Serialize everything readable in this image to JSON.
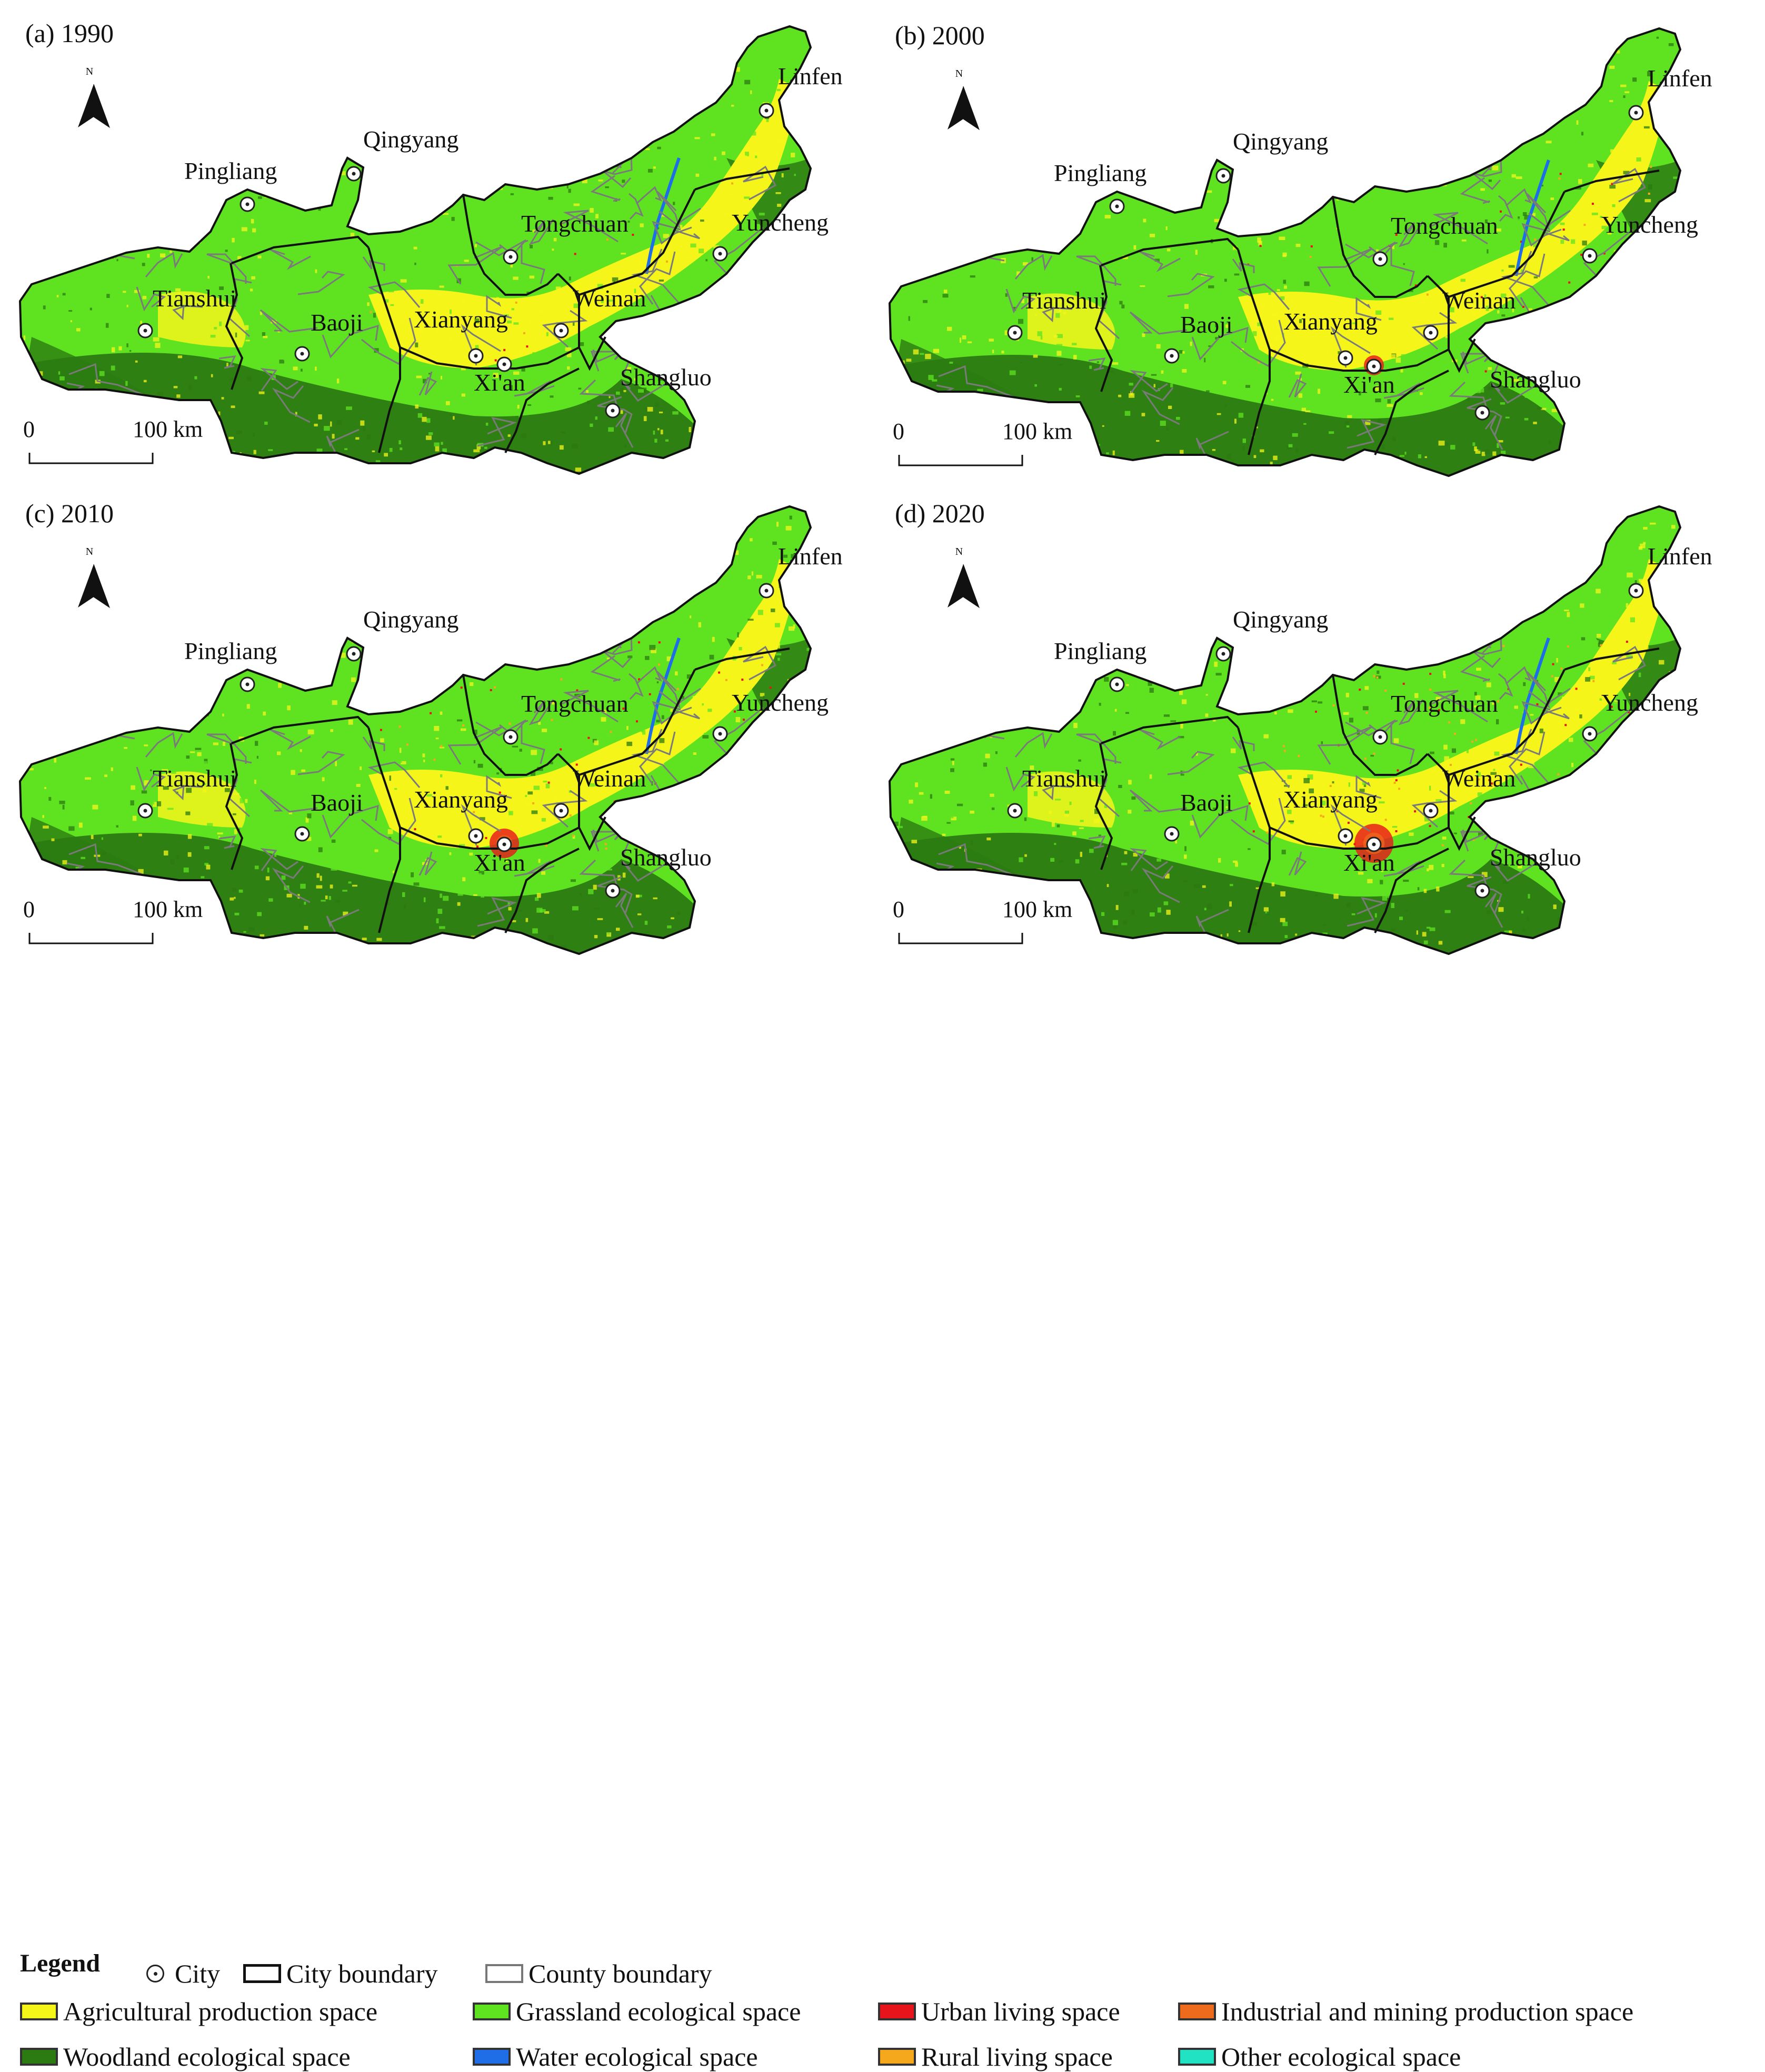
{
  "panels": [
    {
      "label": "(a) 1990"
    },
    {
      "label": "(b) 2000"
    },
    {
      "label": "(c) 2010"
    },
    {
      "label": "(d) 2020"
    }
  ],
  "north_label": "N",
  "scale_bar": {
    "start": "0",
    "end": "100",
    "unit": "km"
  },
  "cities": [
    {
      "name": "Linfen"
    },
    {
      "name": "Qingyang"
    },
    {
      "name": "Pingliang"
    },
    {
      "name": "Tongchuan"
    },
    {
      "name": "Yuncheng"
    },
    {
      "name": "Tianshui"
    },
    {
      "name": "Baoji"
    },
    {
      "name": "Xianyang"
    },
    {
      "name": "Weinan"
    },
    {
      "name": "Xi'an"
    },
    {
      "name": "Shangluo"
    }
  ],
  "legend": {
    "title": "Legend",
    "symbols": {
      "city": "City",
      "city_boundary": "City boundary",
      "county_boundary": "County boundary"
    },
    "classes": [
      {
        "label": "Agricultural production space",
        "color": "#f5f51a"
      },
      {
        "label": "Grassland ecological space",
        "color": "#5fe321"
      },
      {
        "label": "Urban living space",
        "color": "#e8141b"
      },
      {
        "label": "Industrial and mining production space",
        "color": "#ee6a1c"
      },
      {
        "label": "Woodland ecological space",
        "color": "#2b7a12"
      },
      {
        "label": "Water ecological space",
        "color": "#1f6ee8"
      },
      {
        "label": "Rural living space",
        "color": "#f5a81c"
      },
      {
        "label": "Other ecological space",
        "color": "#22e2c4"
      }
    ]
  }
}
